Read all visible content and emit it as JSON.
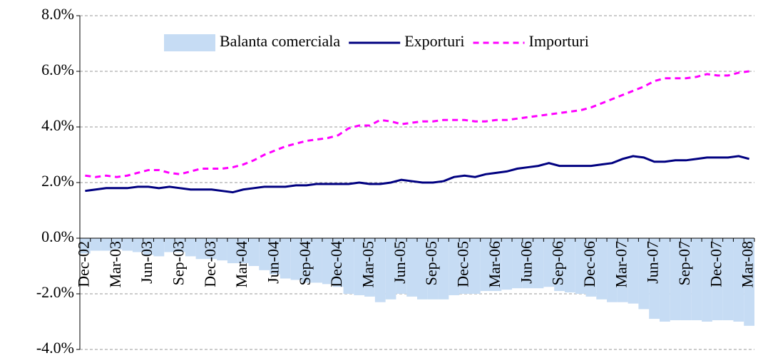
{
  "chart_data": {
    "type": "bar-line",
    "categories": [
      "Dec-02",
      null,
      null,
      "Mar-03",
      null,
      null,
      "Jun-03",
      null,
      null,
      "Sep-03",
      null,
      null,
      "Dec-03",
      null,
      null,
      "Mar-04",
      null,
      null,
      "Jun-04",
      null,
      null,
      "Sep-04",
      null,
      null,
      "Dec-04",
      null,
      null,
      "Mar-05",
      null,
      null,
      "Jun-05",
      null,
      null,
      "Sep-05",
      null,
      null,
      "Dec-05",
      null,
      null,
      "Mar-06",
      null,
      null,
      "Jun-06",
      null,
      null,
      "Sep-06",
      null,
      null,
      "Dec-06",
      null,
      null,
      "Mar-07",
      null,
      null,
      "Jun-07",
      null,
      null,
      "Sep-07",
      null,
      null,
      "Dec-07",
      null,
      null,
      "Mar-08"
    ],
    "series": [
      {
        "name": "Balanta comerciala",
        "kind": "bar",
        "color": "#c6dcf4",
        "values": [
          -0.55,
          -0.45,
          -0.45,
          -0.4,
          -0.45,
          -0.5,
          -0.6,
          -0.65,
          -0.5,
          -0.5,
          -0.65,
          -0.75,
          -0.75,
          -0.8,
          -0.9,
          -0.9,
          -1.0,
          -1.15,
          -1.3,
          -1.45,
          -1.5,
          -1.6,
          -1.6,
          -1.65,
          -1.75,
          -2.0,
          -2.05,
          -2.1,
          -2.3,
          -2.2,
          -2.0,
          -2.1,
          -2.2,
          -2.2,
          -2.2,
          -2.05,
          -2.0,
          -2.0,
          -1.9,
          -1.9,
          -1.85,
          -1.8,
          -1.8,
          -1.8,
          -1.75,
          -1.9,
          -1.95,
          -2.0,
          -2.1,
          -2.2,
          -2.3,
          -2.3,
          -2.35,
          -2.55,
          -2.9,
          -3.0,
          -2.95,
          -2.95,
          -2.95,
          -3.0,
          -2.95,
          -2.95,
          -3.0,
          -3.15
        ]
      },
      {
        "name": "Exporturi",
        "kind": "line",
        "color": "#000080",
        "values": [
          1.7,
          1.75,
          1.8,
          1.8,
          1.8,
          1.85,
          1.85,
          1.8,
          1.85,
          1.8,
          1.75,
          1.75,
          1.75,
          1.7,
          1.65,
          1.75,
          1.8,
          1.85,
          1.85,
          1.85,
          1.9,
          1.9,
          1.95,
          1.95,
          1.95,
          1.95,
          2.0,
          1.95,
          1.95,
          2.0,
          2.1,
          2.05,
          2.0,
          2.0,
          2.05,
          2.2,
          2.25,
          2.2,
          2.3,
          2.35,
          2.4,
          2.5,
          2.55,
          2.6,
          2.7,
          2.6,
          2.6,
          2.6,
          2.6,
          2.65,
          2.7,
          2.85,
          2.95,
          2.9,
          2.75,
          2.75,
          2.8,
          2.8,
          2.85,
          2.9,
          2.9,
          2.9,
          2.95,
          2.85
        ]
      },
      {
        "name": "Importuri",
        "kind": "dashed-line",
        "color": "#ff00ff",
        "values": [
          2.25,
          2.2,
          2.25,
          2.2,
          2.25,
          2.35,
          2.45,
          2.45,
          2.35,
          2.3,
          2.4,
          2.5,
          2.5,
          2.5,
          2.55,
          2.65,
          2.8,
          3.0,
          3.15,
          3.3,
          3.4,
          3.5,
          3.55,
          3.6,
          3.7,
          3.95,
          4.05,
          4.05,
          4.25,
          4.2,
          4.1,
          4.15,
          4.2,
          4.2,
          4.25,
          4.25,
          4.25,
          4.2,
          4.2,
          4.25,
          4.25,
          4.3,
          4.35,
          4.4,
          4.45,
          4.5,
          4.55,
          4.6,
          4.7,
          4.85,
          5.0,
          5.15,
          5.3,
          5.45,
          5.65,
          5.75,
          5.75,
          5.75,
          5.8,
          5.9,
          5.85,
          5.85,
          5.95,
          6.0
        ]
      }
    ],
    "ylim": [
      -4,
      8
    ],
    "yticks": [
      {
        "value": -4,
        "label": "-4.0%"
      },
      {
        "value": -2,
        "label": "-2.0%"
      },
      {
        "value": 0,
        "label": "0.0%"
      },
      {
        "value": 2,
        "label": "2.0%"
      },
      {
        "value": 4,
        "label": "4.0%"
      },
      {
        "value": 6,
        "label": "6.0%"
      },
      {
        "value": 8,
        "label": "8.0%"
      }
    ],
    "grid": true,
    "legend": "top"
  }
}
